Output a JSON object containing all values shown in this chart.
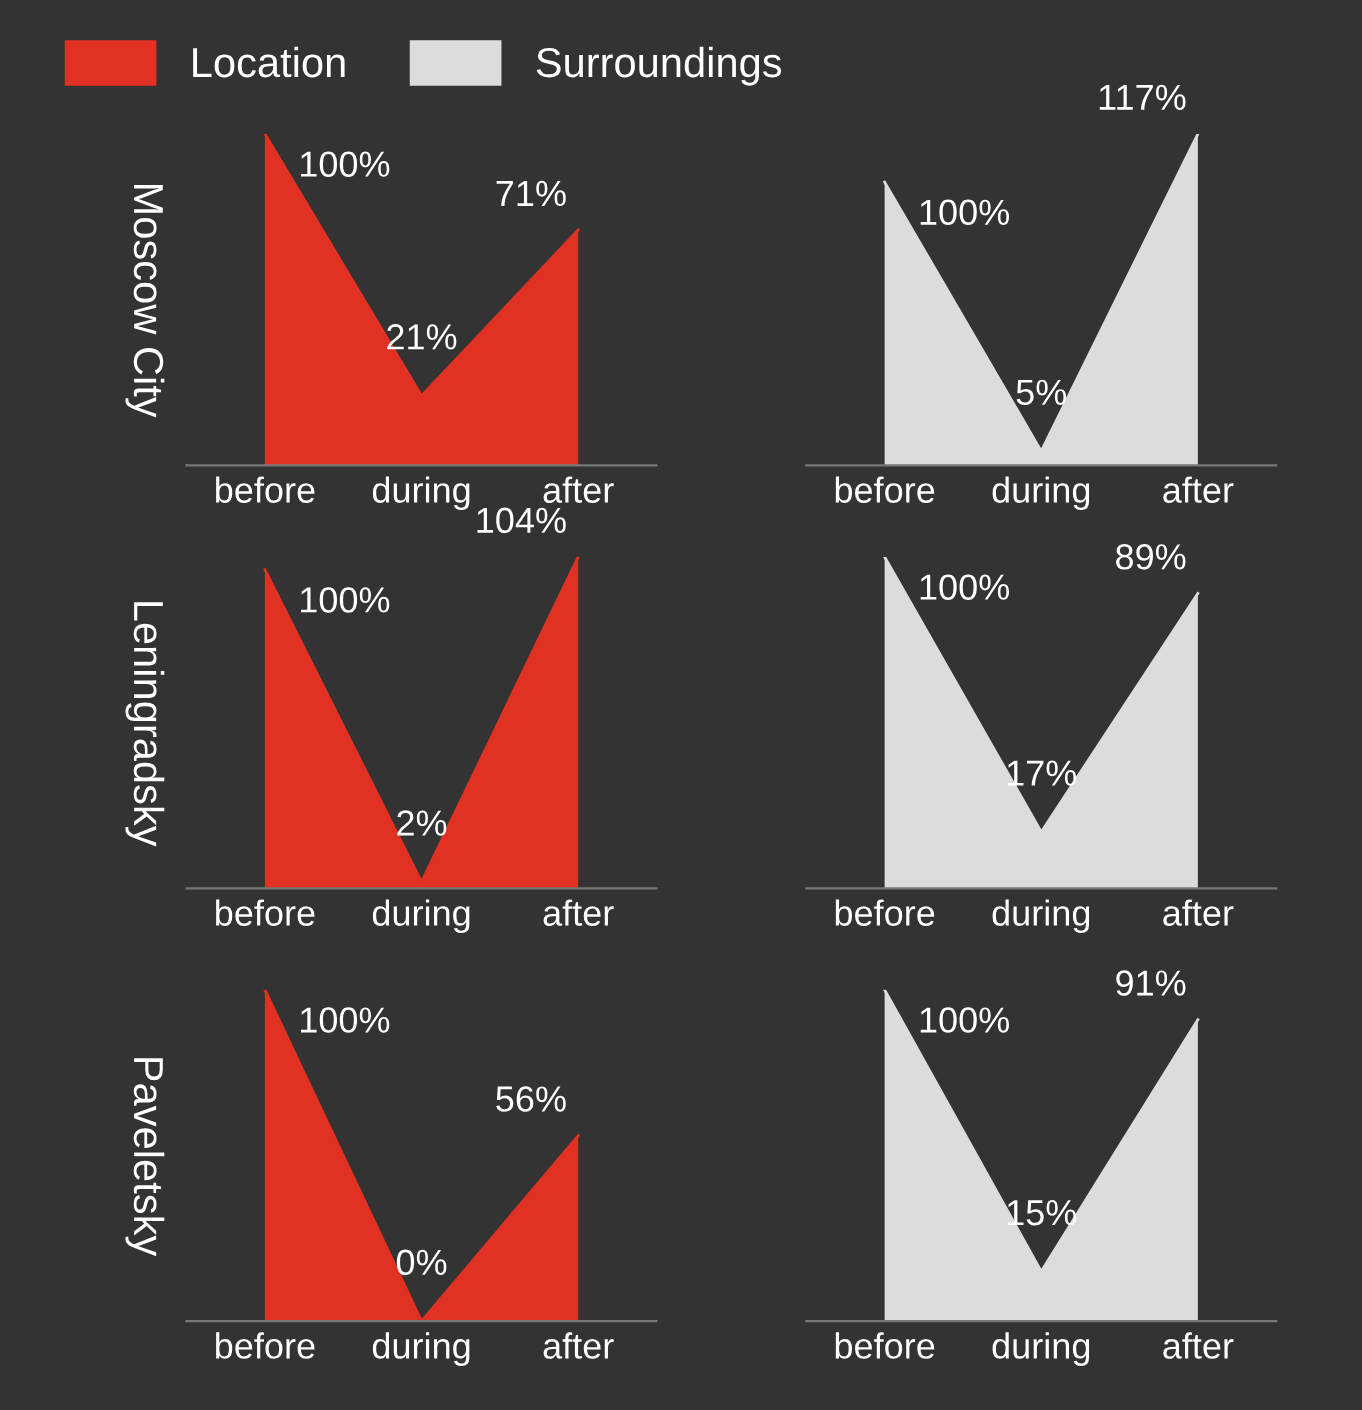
{
  "chart_data": [
    {
      "type": "area",
      "ylabel": "Moscow City",
      "categories": [
        "before",
        "during",
        "after"
      ],
      "legend": "top",
      "series": [
        {
          "name": "Location",
          "color": "#e03122",
          "values": [
            100,
            21,
            71
          ],
          "value_labels": [
            "100%",
            "21%",
            "71%"
          ]
        }
      ],
      "grid": false
    },
    {
      "type": "area",
      "categories": [
        "before",
        "during",
        "after"
      ],
      "legend": "top",
      "series": [
        {
          "name": "Surroundings",
          "color": "#dcdcdc",
          "values": [
            100,
            5,
            117
          ],
          "value_labels": [
            "100%",
            "5%",
            "117%"
          ]
        }
      ],
      "grid": false
    },
    {
      "type": "area",
      "ylabel": "Leningradsky",
      "categories": [
        "before",
        "during",
        "after"
      ],
      "series": [
        {
          "color": "#e03122",
          "values": [
            100,
            2,
            104
          ],
          "value_labels": [
            "100%",
            "2%",
            "104%"
          ]
        }
      ],
      "grid": false
    },
    {
      "type": "area",
      "categories": [
        "before",
        "during",
        "after"
      ],
      "series": [
        {
          "color": "#dcdcdc",
          "values": [
            100,
            17,
            89
          ],
          "value_labels": [
            "100%",
            "17%",
            "89%"
          ]
        }
      ],
      "grid": false
    },
    {
      "type": "area",
      "ylabel": "Paveletsky",
      "categories": [
        "before",
        "during",
        "after"
      ],
      "series": [
        {
          "color": "#e03122",
          "values": [
            100,
            0,
            56
          ],
          "value_labels": [
            "100%",
            "0%",
            "56%"
          ]
        }
      ],
      "grid": false
    },
    {
      "type": "area",
      "categories": [
        "before",
        "during",
        "after"
      ],
      "series": [
        {
          "color": "#dcdcdc",
          "values": [
            100,
            15,
            91
          ],
          "value_labels": [
            "100%",
            "15%",
            "91%"
          ]
        }
      ],
      "grid": false
    }
  ]
}
